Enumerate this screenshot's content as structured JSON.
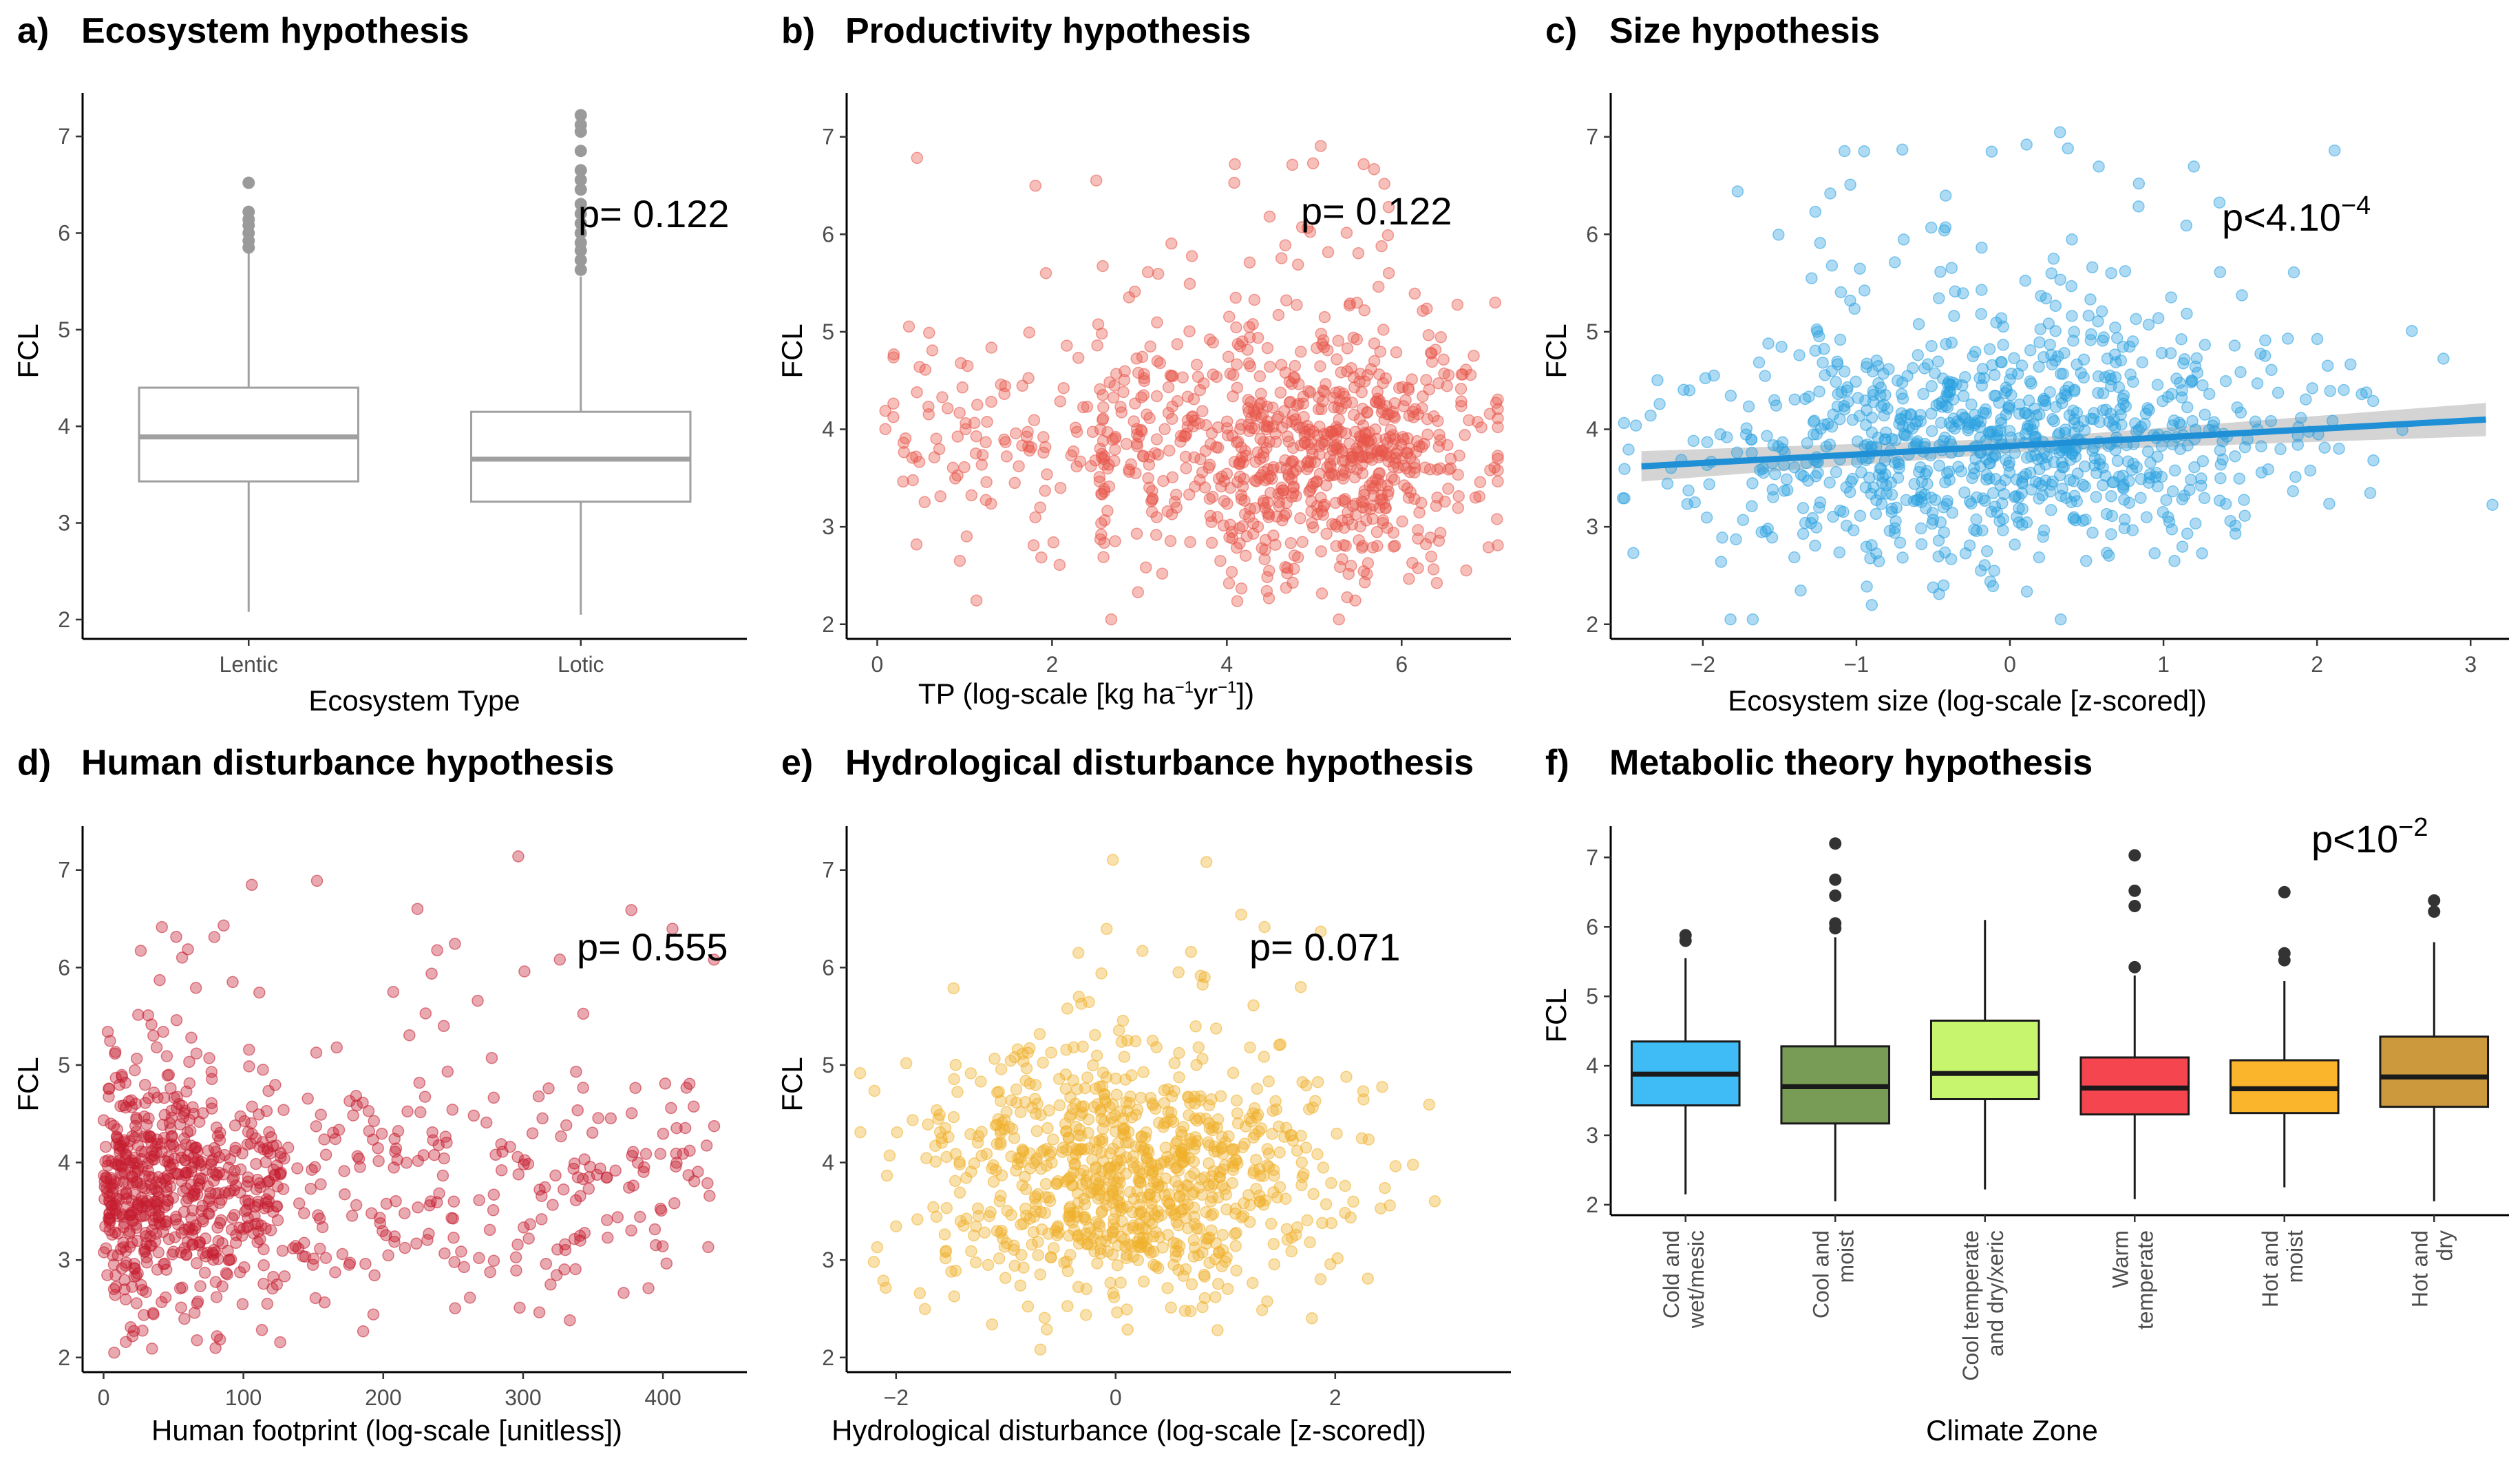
{
  "chart_data": [
    {
      "panel": "a",
      "type": "boxplot",
      "title": "Ecosystem hypothesis",
      "xlabel": "Ecosystem Type",
      "ylabel": "FCL",
      "ylim": [
        1.8,
        7.45
      ],
      "categories": [
        "Lentic",
        "Lotic"
      ],
      "boxes": [
        {
          "q1": 3.43,
          "median": 3.89,
          "q3": 4.4,
          "min": 2.08,
          "max": 5.82,
          "outliers": [
            5.85,
            5.92,
            6.0,
            6.08,
            6.14,
            6.22,
            6.52
          ]
        },
        {
          "q1": 3.22,
          "median": 3.66,
          "q3": 4.15,
          "min": 2.05,
          "max": 5.55,
          "outliers": [
            5.62,
            5.72,
            5.82,
            5.9,
            6.0,
            6.1,
            6.2,
            6.3,
            6.45,
            6.55,
            6.65,
            6.85,
            7.05,
            7.12,
            7.22
          ]
        }
      ],
      "box_fill": "#ffffff",
      "box_stroke": "#a0a0a0",
      "annotation": {
        "text": "p= 0.122"
      }
    },
    {
      "panel": "b",
      "type": "scatter",
      "title": "Productivity hypothesis",
      "ylabel": "FCL",
      "xlabel_parts": {
        "base": "TP (log-scale [kg ha",
        "e1": "−1",
        "mid": "yr",
        "e2": "−1",
        "end": "])"
      },
      "xlim": [
        -0.35,
        7.25
      ],
      "ylim": [
        1.85,
        7.45
      ],
      "xticks": [
        0,
        2,
        4,
        6
      ],
      "yticks": [
        2,
        3,
        4,
        5,
        6,
        7
      ],
      "n_points": 950,
      "color": "#e8564a",
      "annotation": {
        "text": "p= 0.122"
      }
    },
    {
      "panel": "c",
      "type": "scatter",
      "title": "Size hypothesis",
      "ylabel": "FCL",
      "xlabel": "Ecosystem size (log-scale [z-scored])",
      "xlim": [
        -2.6,
        3.25
      ],
      "ylim": [
        1.85,
        7.45
      ],
      "xticks": [
        -2,
        -1,
        0,
        1,
        2,
        3
      ],
      "yticks": [
        2,
        3,
        4,
        5,
        6,
        7
      ],
      "n_points": 950,
      "color": "#2aa0e0",
      "fit": {
        "x": [
          -2.4,
          3.1
        ],
        "y": [
          3.62,
          4.1
        ],
        "color": "#1f8fd6",
        "ci": [
          0.07,
          0.17
        ]
      },
      "annotation": {
        "base": "p<4.10",
        "exp": "−4"
      }
    },
    {
      "panel": "d",
      "type": "scatter",
      "title": "Human disturbance hypothesis",
      "ylabel": "FCL",
      "xlabel": "Human footprint (log-scale [unitless])",
      "xlim": [
        -15,
        460
      ],
      "ylim": [
        1.85,
        7.45
      ],
      "xticks": [
        0,
        100,
        200,
        300,
        400
      ],
      "yticks": [
        2,
        3,
        4,
        5,
        6,
        7
      ],
      "n_points": 880,
      "color": "#c41e2f",
      "annotation": {
        "text": "p= 0.555"
      }
    },
    {
      "panel": "e",
      "type": "scatter",
      "title": "Hydrological disturbance hypothesis",
      "ylabel": "FCL",
      "xlabel": "Hydrological disturbance (log-scale [z-scored])",
      "xlim": [
        -2.45,
        3.6
      ],
      "ylim": [
        1.85,
        7.45
      ],
      "xticks": [
        -2,
        0,
        2
      ],
      "yticks": [
        2,
        3,
        4,
        5,
        6,
        7
      ],
      "n_points": 900,
      "color": "#f0b02a",
      "annotation": {
        "text": "p= 0.071"
      }
    },
    {
      "panel": "f",
      "type": "boxplot",
      "title": "Metabolic theory hypothesis",
      "ylabel": "FCL",
      "xlabel": "Climate Zone",
      "ylim": [
        1.85,
        7.45
      ],
      "categories": [
        [
          "Cold and",
          "wet/mesic"
        ],
        [
          "Cool and",
          "moist"
        ],
        [
          "Cool temperate",
          "and dry/xeric"
        ],
        [
          "Warm",
          "temperate"
        ],
        [
          "Hot and",
          "moist"
        ],
        [
          "Hot and",
          "dry"
        ]
      ],
      "boxes": [
        {
          "q1": 3.43,
          "median": 3.88,
          "q3": 4.35,
          "min": 2.15,
          "max": 5.55,
          "outliers": [
            5.8,
            5.88
          ],
          "fill": "#3fbcf5"
        },
        {
          "q1": 3.17,
          "median": 3.7,
          "q3": 4.28,
          "min": 2.05,
          "max": 5.85,
          "outliers": [
            5.98,
            6.05,
            6.45,
            6.68,
            7.2
          ],
          "fill": "#789c55"
        },
        {
          "q1": 3.52,
          "median": 3.89,
          "q3": 4.65,
          "min": 2.22,
          "max": 6.1,
          "outliers": [],
          "fill": "#c8f56e"
        },
        {
          "q1": 3.3,
          "median": 3.68,
          "q3": 4.12,
          "min": 2.08,
          "max": 5.3,
          "outliers": [
            5.42,
            6.3,
            6.52,
            7.03
          ],
          "fill": "#f5464f"
        },
        {
          "q1": 3.32,
          "median": 3.67,
          "q3": 4.08,
          "min": 2.25,
          "max": 5.22,
          "outliers": [
            5.52,
            5.62,
            6.5
          ],
          "fill": "#fbb52d"
        },
        {
          "q1": 3.41,
          "median": 3.84,
          "q3": 4.42,
          "min": 2.05,
          "max": 5.78,
          "outliers": [
            6.22,
            6.38
          ],
          "fill": "#cc9a3c"
        }
      ],
      "annotation": {
        "base": "p<10",
        "exp": "−2"
      }
    }
  ],
  "labels": {
    "a": "a)",
    "b": "b)",
    "c": "c)",
    "d": "d)",
    "e": "e)",
    "f": "f)"
  }
}
